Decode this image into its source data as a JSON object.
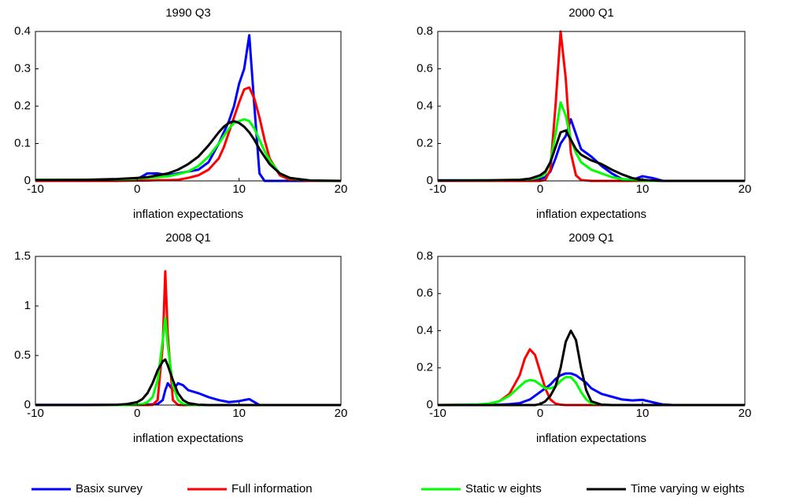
{
  "chart_data": [
    {
      "type": "line",
      "title": "1990 Q3",
      "xlabel": "inflation expectations",
      "xlim": [
        -10,
        20
      ],
      "xticks": [
        -10,
        0,
        10,
        20
      ],
      "ylim": [
        0,
        0.4
      ],
      "yticks": [
        0,
        0.1,
        0.2,
        0.3,
        0.4
      ],
      "x": [
        -10,
        -5,
        -2,
        0,
        1,
        2,
        3,
        4,
        5,
        6,
        7,
        8,
        8.5,
        9,
        9.5,
        10,
        10.5,
        11,
        11.5,
        12,
        12.5,
        13,
        14,
        15,
        17,
        20
      ],
      "series": [
        {
          "name": "Basix survey",
          "color": "#0000ff",
          "values": [
            0.003,
            0.002,
            0.003,
            0.005,
            0.02,
            0.02,
            0.015,
            0.02,
            0.025,
            0.03,
            0.05,
            0.1,
            0.13,
            0.16,
            0.2,
            0.26,
            0.3,
            0.39,
            0.2,
            0.02,
            0,
            0,
            0,
            0,
            0,
            0
          ]
        },
        {
          "name": "Full information",
          "color": "#ff0000",
          "values": [
            0,
            0,
            0,
            0.001,
            0.001,
            0.002,
            0.002,
            0.003,
            0.008,
            0.015,
            0.03,
            0.06,
            0.09,
            0.13,
            0.17,
            0.21,
            0.245,
            0.25,
            0.22,
            0.17,
            0.11,
            0.06,
            0.015,
            0.003,
            0,
            0
          ]
        },
        {
          "name": "Static w eights",
          "color": "#00ff00",
          "values": [
            0.003,
            0.003,
            0.004,
            0.006,
            0.008,
            0.01,
            0.012,
            0.018,
            0.025,
            0.04,
            0.065,
            0.1,
            0.12,
            0.14,
            0.155,
            0.16,
            0.165,
            0.16,
            0.14,
            0.11,
            0.08,
            0.055,
            0.02,
            0.007,
            0.001,
            0
          ]
        },
        {
          "name": "Time varying w eights",
          "color": "#000000",
          "values": [
            0.002,
            0.003,
            0.005,
            0.008,
            0.01,
            0.015,
            0.02,
            0.03,
            0.045,
            0.065,
            0.095,
            0.13,
            0.145,
            0.155,
            0.16,
            0.155,
            0.145,
            0.13,
            0.11,
            0.085,
            0.065,
            0.045,
            0.02,
            0.008,
            0.001,
            0
          ]
        }
      ]
    },
    {
      "type": "line",
      "title": "2000 Q1",
      "xlabel": "inflation expectations",
      "xlim": [
        -10,
        20
      ],
      "xticks": [
        -10,
        0,
        10,
        20
      ],
      "ylim": [
        0,
        0.8
      ],
      "yticks": [
        0,
        0.2,
        0.4,
        0.6,
        0.8
      ],
      "x": [
        -10,
        -5,
        -2,
        -1,
        0,
        0.5,
        1,
        1.5,
        2,
        2.5,
        3,
        3.5,
        4,
        5,
        6,
        7,
        8,
        9,
        10,
        11,
        12,
        14,
        20
      ],
      "series": [
        {
          "color": "#0000ff",
          "values": [
            0.003,
            0.002,
            0.003,
            0.005,
            0.01,
            0.02,
            0.05,
            0.12,
            0.2,
            0.24,
            0.33,
            0.25,
            0.17,
            0.13,
            0.08,
            0.04,
            0.01,
            0.005,
            0.025,
            0.015,
            0,
            0,
            0
          ]
        },
        {
          "color": "#ff0000",
          "values": [
            0,
            0,
            0,
            0,
            0,
            0.005,
            0.06,
            0.4,
            0.8,
            0.55,
            0.15,
            0.03,
            0.005,
            0,
            0,
            0,
            0,
            0,
            0,
            0,
            0,
            0,
            0
          ]
        },
        {
          "color": "#00ff00",
          "values": [
            0.002,
            0.003,
            0.005,
            0.01,
            0.02,
            0.04,
            0.1,
            0.25,
            0.42,
            0.35,
            0.22,
            0.15,
            0.1,
            0.06,
            0.04,
            0.02,
            0.01,
            0.003,
            0.001,
            0,
            0,
            0,
            0
          ]
        },
        {
          "color": "#000000",
          "values": [
            0.002,
            0.003,
            0.006,
            0.012,
            0.03,
            0.05,
            0.1,
            0.18,
            0.26,
            0.27,
            0.22,
            0.17,
            0.14,
            0.11,
            0.09,
            0.06,
            0.035,
            0.015,
            0.005,
            0.002,
            0,
            0,
            0
          ]
        }
      ]
    },
    {
      "type": "line",
      "title": "2008 Q1",
      "xlabel": "inflation expectations",
      "xlim": [
        -10,
        20
      ],
      "xticks": [
        -10,
        0,
        10,
        20
      ],
      "ylim": [
        0,
        1.5
      ],
      "yticks": [
        0,
        0.5,
        1,
        1.5
      ],
      "x": [
        -10,
        -5,
        -2,
        -1,
        0,
        0.5,
        1,
        1.5,
        2,
        2.5,
        2.75,
        3,
        3.5,
        4,
        4.5,
        5,
        6,
        7,
        8,
        9,
        10,
        10.5,
        11,
        11.5,
        12,
        14,
        20
      ],
      "series": [
        {
          "color": "#0000ff",
          "values": [
            0.002,
            0.002,
            0.002,
            0.002,
            0.003,
            0.004,
            0.005,
            0.008,
            0.01,
            0.05,
            0.15,
            0.22,
            0.15,
            0.22,
            0.2,
            0.15,
            0.12,
            0.08,
            0.05,
            0.03,
            0.04,
            0.05,
            0.06,
            0.03,
            0,
            0,
            0
          ]
        },
        {
          "color": "#ff0000",
          "values": [
            0,
            0,
            0,
            0,
            0,
            0,
            0,
            0.002,
            0.05,
            0.6,
            1.35,
            0.7,
            0.05,
            0.002,
            0,
            0,
            0,
            0,
            0,
            0,
            0,
            0,
            0,
            0,
            0,
            0,
            0
          ]
        },
        {
          "color": "#00ff00",
          "values": [
            0,
            0,
            0,
            0,
            0.004,
            0.01,
            0.03,
            0.08,
            0.25,
            0.65,
            0.88,
            0.6,
            0.2,
            0.05,
            0.01,
            0.002,
            0,
            0,
            0,
            0,
            0,
            0,
            0,
            0,
            0,
            0,
            0
          ]
        },
        {
          "color": "#000000",
          "values": [
            0,
            0,
            0.003,
            0.01,
            0.03,
            0.06,
            0.12,
            0.22,
            0.35,
            0.44,
            0.46,
            0.4,
            0.25,
            0.12,
            0.05,
            0.02,
            0.003,
            0,
            0,
            0,
            0,
            0,
            0,
            0,
            0,
            0,
            0
          ]
        }
      ]
    },
    {
      "type": "line",
      "title": "2009 Q1",
      "xlabel": "inflation expectations",
      "xlim": [
        -10,
        20
      ],
      "xticks": [
        -10,
        0,
        10,
        20
      ],
      "ylim": [
        0,
        0.8
      ],
      "yticks": [
        0,
        0.2,
        0.4,
        0.6,
        0.8
      ],
      "x": [
        -10,
        -6,
        -5,
        -4,
        -3,
        -2,
        -1.5,
        -1,
        -0.5,
        0,
        0.5,
        1,
        1.5,
        2,
        2.5,
        3,
        3.5,
        4,
        4.5,
        5,
        6,
        7,
        8,
        9,
        10,
        11,
        12,
        13,
        15,
        20
      ],
      "series": [
        {
          "color": "#0000ff",
          "values": [
            0,
            0,
            0,
            0.002,
            0.005,
            0.01,
            0.02,
            0.03,
            0.05,
            0.07,
            0.09,
            0.11,
            0.14,
            0.16,
            0.17,
            0.17,
            0.16,
            0.14,
            0.12,
            0.09,
            0.06,
            0.045,
            0.03,
            0.025,
            0.028,
            0.015,
            0.003,
            0,
            0,
            0
          ]
        },
        {
          "color": "#ff0000",
          "values": [
            0,
            0.002,
            0.006,
            0.02,
            0.06,
            0.16,
            0.25,
            0.3,
            0.27,
            0.18,
            0.09,
            0.03,
            0.008,
            0.002,
            0,
            0,
            0,
            0,
            0,
            0,
            0,
            0,
            0,
            0,
            0,
            0,
            0,
            0,
            0,
            0
          ]
        },
        {
          "color": "#00ff00",
          "values": [
            0,
            0.003,
            0.008,
            0.02,
            0.05,
            0.1,
            0.125,
            0.135,
            0.13,
            0.11,
            0.09,
            0.09,
            0.1,
            0.13,
            0.15,
            0.15,
            0.12,
            0.07,
            0.03,
            0.01,
            0.002,
            0,
            0,
            0,
            0,
            0,
            0,
            0,
            0,
            0
          ]
        },
        {
          "color": "#000000",
          "values": [
            0,
            0,
            0,
            0,
            0,
            0,
            0,
            0,
            0,
            0.005,
            0.02,
            0.05,
            0.1,
            0.2,
            0.34,
            0.4,
            0.35,
            0.2,
            0.08,
            0.02,
            0.002,
            0,
            0,
            0,
            0,
            0,
            0,
            0,
            0,
            0
          ]
        }
      ]
    }
  ]
}
